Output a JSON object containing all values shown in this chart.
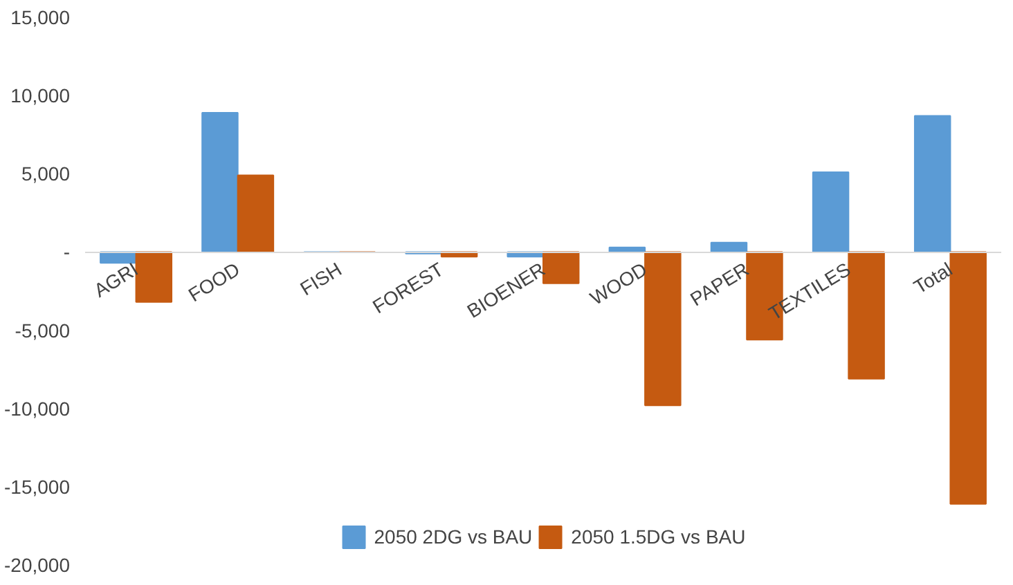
{
  "chart_data": {
    "type": "bar",
    "categories": [
      "AGRI",
      "FOOD",
      "FISH",
      "FOREST",
      "BIOENER",
      "WOOD",
      "PAPER",
      "TEXTILES",
      "Total"
    ],
    "series": [
      {
        "name": "2050 2DG vs BAU",
        "color": "#5b9bd5",
        "values": [
          -700,
          8900,
          0,
          -100,
          -300,
          300,
          600,
          5100,
          8700
        ]
      },
      {
        "name": "2050 1.5DG vs BAU",
        "color": "#c55a11",
        "values": [
          -3200,
          4900,
          0,
          -300,
          -2000,
          -9800,
          -5600,
          -8100,
          -16100
        ]
      }
    ],
    "ylim": [
      -20000,
      15000
    ],
    "yticks": [
      {
        "value": -20000,
        "label": "-20,000"
      },
      {
        "value": -15000,
        "label": "-15,000"
      },
      {
        "value": -10000,
        "label": "-10,000"
      },
      {
        "value": -5000,
        "label": "-5,000"
      },
      {
        "value": 0,
        "label": "-"
      },
      {
        "value": 5000,
        "label": "5,000"
      },
      {
        "value": 10000,
        "label": "10,000"
      },
      {
        "value": 15000,
        "label": "15,000"
      }
    ],
    "legend": "bottom",
    "grid": false
  }
}
